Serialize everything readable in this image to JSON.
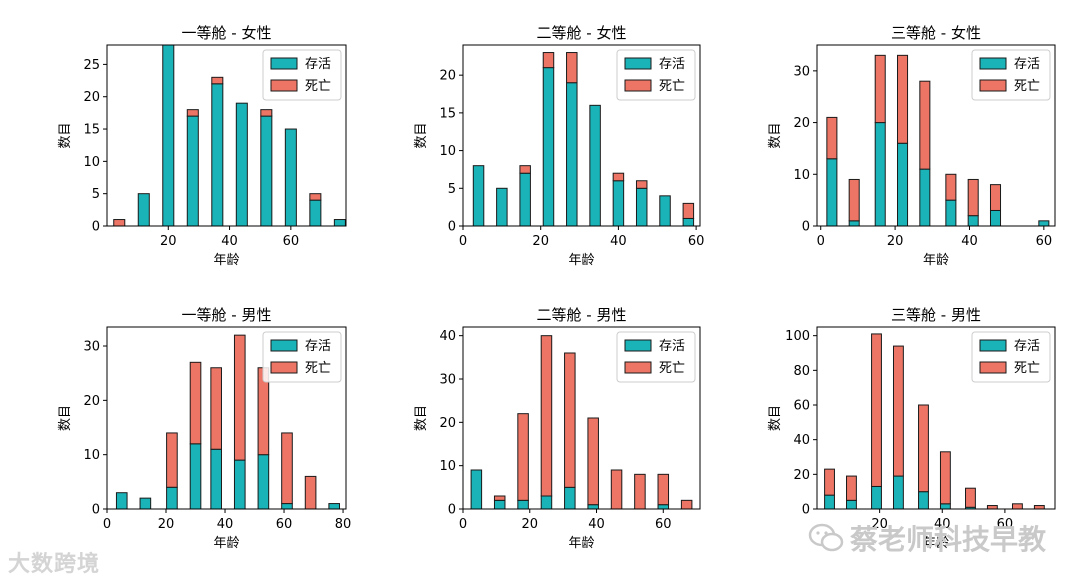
{
  "colors": {
    "survived": "#1ab3b8",
    "died": "#ec7565",
    "edge": "#1a1a1a"
  },
  "legend": {
    "survived": "存活",
    "died": "死亡"
  },
  "watermarks": {
    "left": "大数跨境",
    "right": "蔡老师科技早教"
  },
  "chart_data": [
    {
      "type": "bar",
      "stacked": true,
      "title": "一等舱 - 女性",
      "xlabel": "年龄",
      "ylabel": "数目",
      "xlim": [
        0,
        78
      ],
      "ylim": [
        0,
        28
      ],
      "xticks": [
        20,
        40,
        60
      ],
      "yticks": [
        0,
        5,
        10,
        15,
        20,
        25
      ],
      "x": [
        4,
        12,
        20,
        28,
        36,
        44,
        52,
        60,
        68,
        76
      ],
      "series": [
        {
          "name": "存活",
          "values": [
            0,
            5,
            28,
            17,
            22,
            19,
            17,
            15,
            4,
            1
          ]
        },
        {
          "name": "死亡",
          "values": [
            1,
            0,
            0,
            1,
            1,
            0,
            1,
            0,
            1,
            0
          ]
        }
      ],
      "legend_position": "upper right"
    },
    {
      "type": "bar",
      "stacked": true,
      "title": "二等舱 - 女性",
      "xlabel": "年龄",
      "ylabel": "数目",
      "xlim": [
        0,
        61
      ],
      "ylim": [
        0,
        24
      ],
      "xticks": [
        0,
        20,
        40,
        60
      ],
      "yticks": [
        0,
        5,
        10,
        15,
        20
      ],
      "x": [
        4,
        10,
        16,
        22,
        28,
        34,
        40,
        46,
        52,
        58
      ],
      "series": [
        {
          "name": "存活",
          "values": [
            8,
            5,
            7,
            21,
            19,
            16,
            6,
            5,
            4,
            1
          ]
        },
        {
          "name": "死亡",
          "values": [
            0,
            0,
            1,
            2,
            4,
            0,
            1,
            1,
            0,
            2
          ]
        }
      ],
      "legend_position": "upper right"
    },
    {
      "type": "bar",
      "stacked": true,
      "title": "三等舱 - 女性",
      "xlabel": "年龄",
      "ylabel": "数目",
      "xlim": [
        -1,
        63
      ],
      "ylim": [
        0,
        35
      ],
      "xticks": [
        0,
        20,
        40,
        60
      ],
      "yticks": [
        0,
        10,
        20,
        30
      ],
      "x": [
        3,
        9,
        16,
        22,
        28,
        35,
        41,
        47,
        54,
        60
      ],
      "series": [
        {
          "name": "存活",
          "values": [
            13,
            1,
            20,
            16,
            11,
            5,
            2,
            3,
            0,
            1
          ]
        },
        {
          "name": "死亡",
          "values": [
            8,
            8,
            13,
            17,
            17,
            5,
            7,
            5,
            0,
            0
          ]
        }
      ],
      "legend_position": "upper right"
    },
    {
      "type": "bar",
      "stacked": true,
      "title": "一等舱 - 男性",
      "xlabel": "年龄",
      "ylabel": "数目",
      "xlim": [
        0,
        81
      ],
      "ylim": [
        0,
        33.5
      ],
      "xticks": [
        0,
        20,
        40,
        60,
        80
      ],
      "yticks": [
        0,
        10,
        20,
        30
      ],
      "x": [
        5,
        13,
        22,
        30,
        37,
        45,
        53,
        61,
        69,
        77
      ],
      "series": [
        {
          "name": "存活",
          "values": [
            3,
            2,
            4,
            12,
            11,
            9,
            10,
            1,
            0,
            1
          ]
        },
        {
          "name": "死亡",
          "values": [
            0,
            0,
            10,
            15,
            15,
            23,
            16,
            13,
            6,
            0
          ]
        }
      ],
      "legend_position": "upper right"
    },
    {
      "type": "bar",
      "stacked": true,
      "title": "二等舱 - 男性",
      "xlabel": "年龄",
      "ylabel": "数目",
      "xlim": [
        0,
        71
      ],
      "ylim": [
        0,
        42
      ],
      "xticks": [
        0,
        20,
        40,
        60
      ],
      "yticks": [
        0,
        10,
        20,
        30,
        40
      ],
      "x": [
        4,
        11,
        18,
        25,
        32,
        39,
        46,
        53,
        60,
        67
      ],
      "series": [
        {
          "name": "存活",
          "values": [
            9,
            2,
            2,
            3,
            5,
            1,
            0,
            0,
            1,
            0
          ]
        },
        {
          "name": "死亡",
          "values": [
            0,
            1,
            20,
            37,
            31,
            20,
            9,
            8,
            7,
            2
          ]
        }
      ],
      "legend_position": "upper right"
    },
    {
      "type": "bar",
      "stacked": true,
      "title": "三等舱 - 男性",
      "xlabel": "年龄",
      "ylabel": "数目",
      "xlim": [
        0,
        76
      ],
      "ylim": [
        0,
        105
      ],
      "xticks": [
        20,
        40,
        60
      ],
      "yticks": [
        0,
        20,
        40,
        60,
        80,
        100
      ],
      "x": [
        4,
        11,
        19,
        26,
        34,
        41,
        49,
        56,
        64,
        71
      ],
      "series": [
        {
          "name": "存活",
          "values": [
            8,
            5,
            13,
            19,
            10,
            3,
            1,
            0,
            0,
            0
          ]
        },
        {
          "name": "死亡",
          "values": [
            15,
            14,
            88,
            75,
            50,
            30,
            11,
            2,
            3,
            2
          ]
        }
      ],
      "legend_position": "upper right"
    }
  ]
}
